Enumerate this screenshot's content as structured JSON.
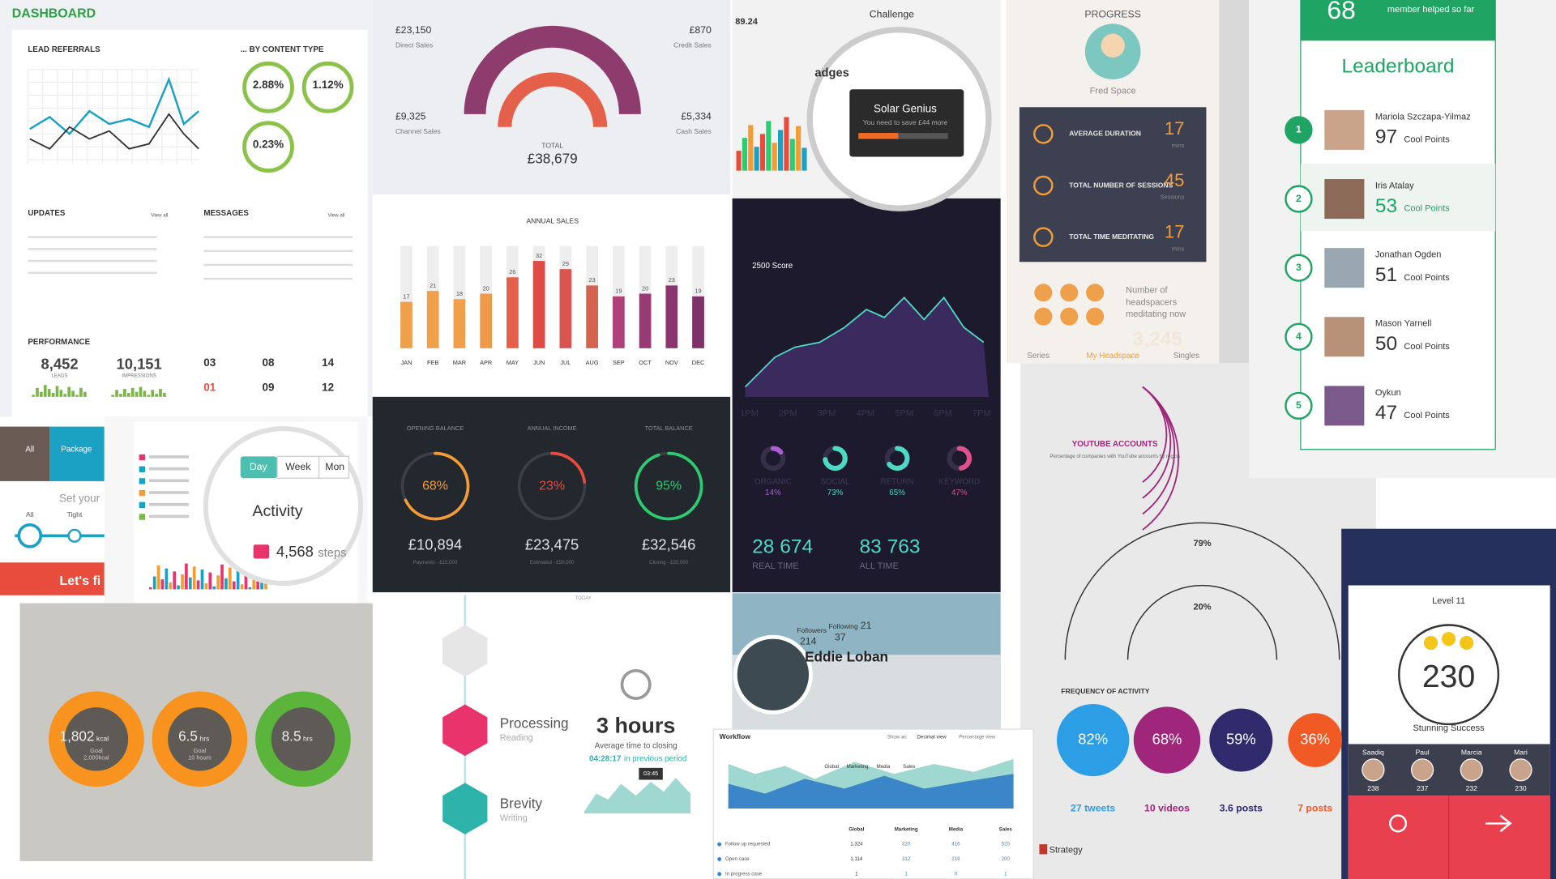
{
  "dashboard": {
    "title": "DASHBOARD",
    "lead_referrals": "LEAD REFERRALS",
    "by_content": "... BY CONTENT TYPE",
    "rates": [
      "2.88%",
      "1.12%",
      "0.23%"
    ],
    "updates": "UPDATES",
    "messages": "MESSAGES",
    "view_all": "View all",
    "performance": "PERFORMANCE",
    "leads": {
      "value": "8,452",
      "label": "LEADS"
    },
    "impressions": {
      "value": "10,151",
      "label": "IMPRESSIONS"
    },
    "counts": [
      "03",
      "08",
      "14",
      "01",
      "09",
      "12"
    ]
  },
  "sales": {
    "direct": {
      "value": "£23,150",
      "label": "Direct Sales"
    },
    "credit": {
      "value": "£870",
      "label": "Credit Sales"
    },
    "channel": {
      "value": "£9,325",
      "label": "Channel Sales"
    },
    "cash": {
      "value": "£5,334",
      "label": "Cash Sales"
    },
    "total_label": "TOTAL",
    "total": "£38,679"
  },
  "annual_sales": {
    "title": "ANNUAL SALES",
    "categories": [
      "JAN",
      "FEB",
      "MAR",
      "APR",
      "MAY",
      "JUN",
      "JUL",
      "AUG",
      "SEP",
      "OCT",
      "NOV",
      "DEC"
    ],
    "values": [
      17,
      21,
      18,
      20,
      26,
      32,
      29,
      23,
      19,
      20,
      23,
      19
    ],
    "colors": [
      "#f0a04b",
      "#f0a04b",
      "#f0a04b",
      "#ee9a48",
      "#e5604a",
      "#dd4b44",
      "#d9534f",
      "#d46450",
      "#b0407a",
      "#9a3a74",
      "#8a3570",
      "#7e3068"
    ]
  },
  "balances": [
    {
      "label": "OPENING BALANCE",
      "percent": 68,
      "percent_label": "68%",
      "amount": "£10,894",
      "note": "Payments - £15,000",
      "color": "#f39c35"
    },
    {
      "label": "ANNUAL INCOME",
      "percent": 23,
      "percent_label": "23%",
      "amount": "£23,475",
      "note": "Estimated - £50,000",
      "color": "#e74c3c"
    },
    {
      "label": "TOTAL BALANCE",
      "percent": 95,
      "percent_label": "95%",
      "amount": "£32,546",
      "note": "Closing - £35,000",
      "color": "#2ecc71"
    }
  ],
  "badges": {
    "stat": "89.24",
    "challenge": "Challenge",
    "heading": "adges",
    "popup_title": "Solar Genius",
    "popup_text": "You need to save £44 more"
  },
  "score": {
    "title": "2500 Score",
    "times": [
      "1PM",
      "2PM",
      "3PM",
      "4PM",
      "5PM",
      "6PM",
      "7PM"
    ],
    "sources": [
      {
        "label": "ORGANIC",
        "value": 14,
        "value_label": "14%",
        "color": "#b05bd6"
      },
      {
        "label": "SOCIAL",
        "value": 73,
        "value_label": "73%",
        "color": "#4dd9c4"
      },
      {
        "label": "RETURN",
        "value": 65,
        "value_label": "65%",
        "color": "#4dd9c4"
      },
      {
        "label": "KEYWORD",
        "value": 47,
        "value_label": "47%",
        "color": "#e0508a"
      }
    ],
    "real_time": "28 674",
    "real_time_label": "REAL TIME",
    "all_time": "83 763",
    "all_time_label": "ALL TIME"
  },
  "progress": {
    "title": "PROGRESS",
    "user": "Fred Space",
    "stats": [
      {
        "label": "AVERAGE DURATION",
        "value": "17",
        "unit": "mins"
      },
      {
        "label": "TOTAL NUMBER OF SESSIONS",
        "value": "45",
        "unit": "Sessions"
      },
      {
        "label": "TOTAL TIME MEDITATING",
        "value": "17",
        "unit": "mins"
      }
    ],
    "now": [
      "Number of",
      "headspacers",
      "meditating now"
    ],
    "count": "3,245",
    "tabs": [
      "Series",
      "My Headspace",
      "Singles"
    ]
  },
  "leaderboard": {
    "helped": "68",
    "helped_label": "member helped so far",
    "title": "Leaderboard",
    "points_label": "Cool Points",
    "entries": [
      {
        "rank": "1",
        "name": "Mariola Szczapa-Yilmaz",
        "points": "97"
      },
      {
        "rank": "2",
        "name": "Iris Atalay",
        "points": "53"
      },
      {
        "rank": "3",
        "name": "Jonathan Ogden",
        "points": "51"
      },
      {
        "rank": "4",
        "name": "Mason Yarnell",
        "points": "50"
      },
      {
        "rank": "5",
        "name": "Oykun",
        "points": "47"
      }
    ]
  },
  "infographic": {
    "youtube": "YOUTUBE ACCOUNTS",
    "youtube_note": "Percentage of companies with YouTube accounts by region",
    "pct_high": "79%",
    "pct_low": "20%",
    "frequency": "FREQUENCY OF ACTIVITY",
    "circles": [
      {
        "value": 82,
        "label": "82%",
        "stat": "27 tweets",
        "color": "#2b9ee5"
      },
      {
        "value": 68,
        "label": "68%",
        "stat": "10 videos",
        "color": "#a0267b"
      },
      {
        "value": 59,
        "label": "59%",
        "stat": "3.6 posts",
        "color": "#2e2a6b"
      },
      {
        "value": 36,
        "label": "36%",
        "stat": "7 posts",
        "color": "#f15a24"
      }
    ],
    "brand": "Strategy"
  },
  "level": {
    "level": "Level 11",
    "score": "230",
    "status": "Stunning Success",
    "players": [
      {
        "name": "Saadiq",
        "score": "238"
      },
      {
        "name": "Paul",
        "score": "237"
      },
      {
        "name": "Marcia",
        "score": "232"
      },
      {
        "name": "Mari",
        "score": "230"
      }
    ]
  },
  "onboarding": {
    "tabs": [
      "All",
      "Package"
    ],
    "prompt": "Set your",
    "options": [
      "All",
      "Tight"
    ],
    "cta": "Let's fi"
  },
  "activity": {
    "tabs": [
      "Day",
      "Week",
      "Mon"
    ],
    "title": "Activity",
    "steps": "4,568",
    "unit": "steps"
  },
  "rings": [
    {
      "value": "1,802",
      "unit": "kcal",
      "goal": "Goal",
      "target": "2,000kcal",
      "color": "#f7931e"
    },
    {
      "value": "6.5",
      "unit": "hrs",
      "goal": "Goal",
      "target": "10 hours",
      "color": "#f7931e"
    },
    {
      "value": "8.5",
      "unit": "hrs",
      "color": "#5bb53a"
    }
  ],
  "timeline": {
    "today": "TODAY",
    "steps": [
      {
        "title": "Processing",
        "sub": "Reading"
      },
      {
        "title": "Brevity",
        "sub": "Writing"
      }
    ],
    "duration": "3 hours",
    "duration_label": "Average time to closing",
    "previous": "04:28:17",
    "previous_label": "in previous period",
    "tooltip": "03:45"
  },
  "profile": {
    "name": "Eddie Loban",
    "followers_label": "Followers",
    "followers": "214",
    "following_label": "Following",
    "following": "37",
    "other": "21"
  },
  "workflow": {
    "title": "Workflow",
    "show_as": "Show as:",
    "views": [
      "Decimal view",
      "Percentage view"
    ],
    "tabs": [
      "Global",
      "Marketing",
      "Media",
      "Sales"
    ],
    "rows": [
      {
        "name": "Follow up requested",
        "values": [
          "1,324",
          "320",
          "416",
          "520"
        ]
      },
      {
        "name": "Open case",
        "values": [
          "1,114",
          "312",
          "219",
          "200"
        ]
      },
      {
        "name": "In progress case",
        "values": [
          "1",
          "1",
          "0",
          "1"
        ]
      }
    ]
  }
}
